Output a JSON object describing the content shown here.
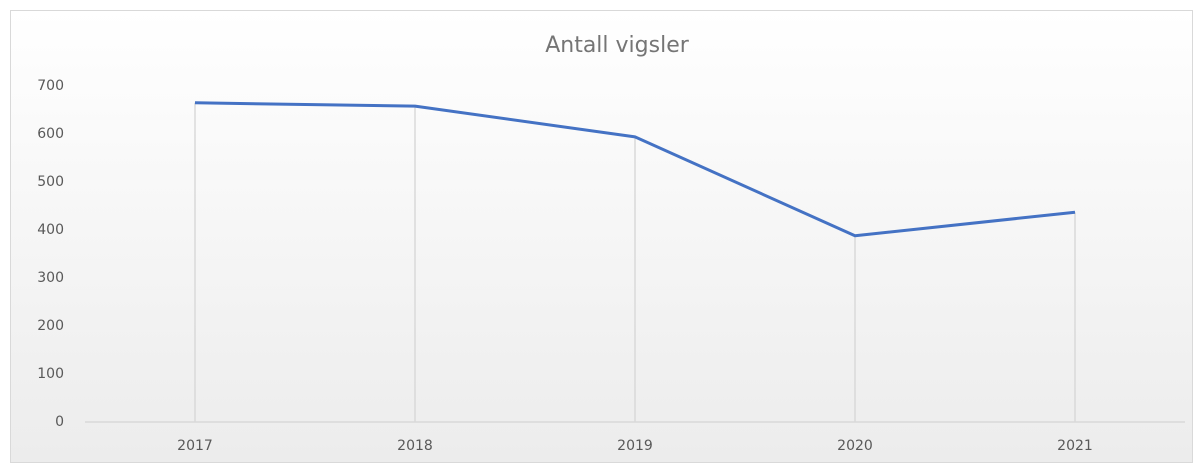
{
  "chart_data": {
    "type": "line",
    "title": "Antall vigsler",
    "categories": [
      "2017",
      "2018",
      "2019",
      "2020",
      "2021"
    ],
    "series": [
      {
        "name": "Antall vigsler",
        "color": "#4472c4",
        "values": [
          665,
          658,
          594,
          388,
          437
        ]
      }
    ],
    "ylim": [
      0,
      700
    ],
    "yticks": [
      0,
      100,
      200,
      300,
      400,
      500,
      600,
      700
    ],
    "drop_lines": true,
    "grid": false
  }
}
